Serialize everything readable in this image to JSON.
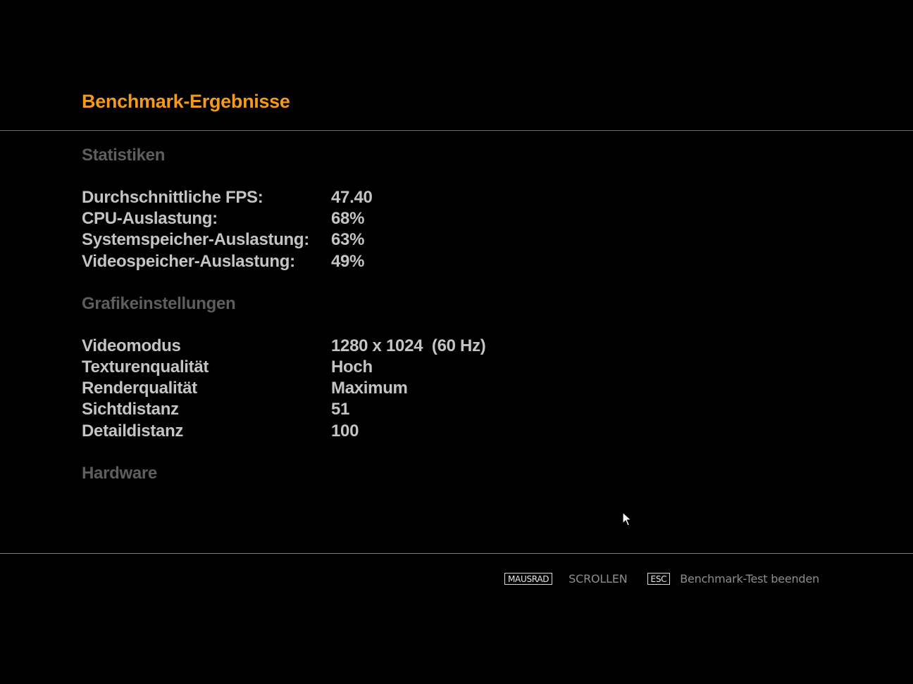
{
  "header": {
    "title": "Benchmark-Ergebnisse"
  },
  "sections": {
    "statistics": {
      "heading": "Statistiken",
      "rows": [
        {
          "label": "Durchschnittliche FPS:",
          "value": "47.40"
        },
        {
          "label": "CPU-Auslastung:",
          "value": "68%"
        },
        {
          "label": "Systemspeicher-Auslastung:",
          "value": "63%"
        },
        {
          "label": "Videospeicher-Auslastung:",
          "value": "49%"
        }
      ]
    },
    "graphics": {
      "heading": "Grafikeinstellungen",
      "rows": [
        {
          "label": "Videomodus",
          "value": "1280 x 1024  (60 Hz)"
        },
        {
          "label": "Texturenqualität",
          "value": "Hoch"
        },
        {
          "label": "Renderqualität",
          "value": "Maximum"
        },
        {
          "label": "Sichtdistanz",
          "value": "51"
        },
        {
          "label": "Detaildistanz",
          "value": "100"
        }
      ]
    },
    "hardware": {
      "heading": "Hardware"
    }
  },
  "footer": {
    "scroll_key": "MAUSRAD",
    "scroll_action": "SCROLLEN",
    "exit_key": "ESC",
    "exit_action": "Benchmark-Test beenden"
  },
  "colors": {
    "accent": "#f39a1c",
    "section_heading": "#5e5e5e",
    "row_text": "#c4c4c4",
    "background": "#000000"
  },
  "icons": {
    "cursor": "mouse-pointer-icon"
  }
}
